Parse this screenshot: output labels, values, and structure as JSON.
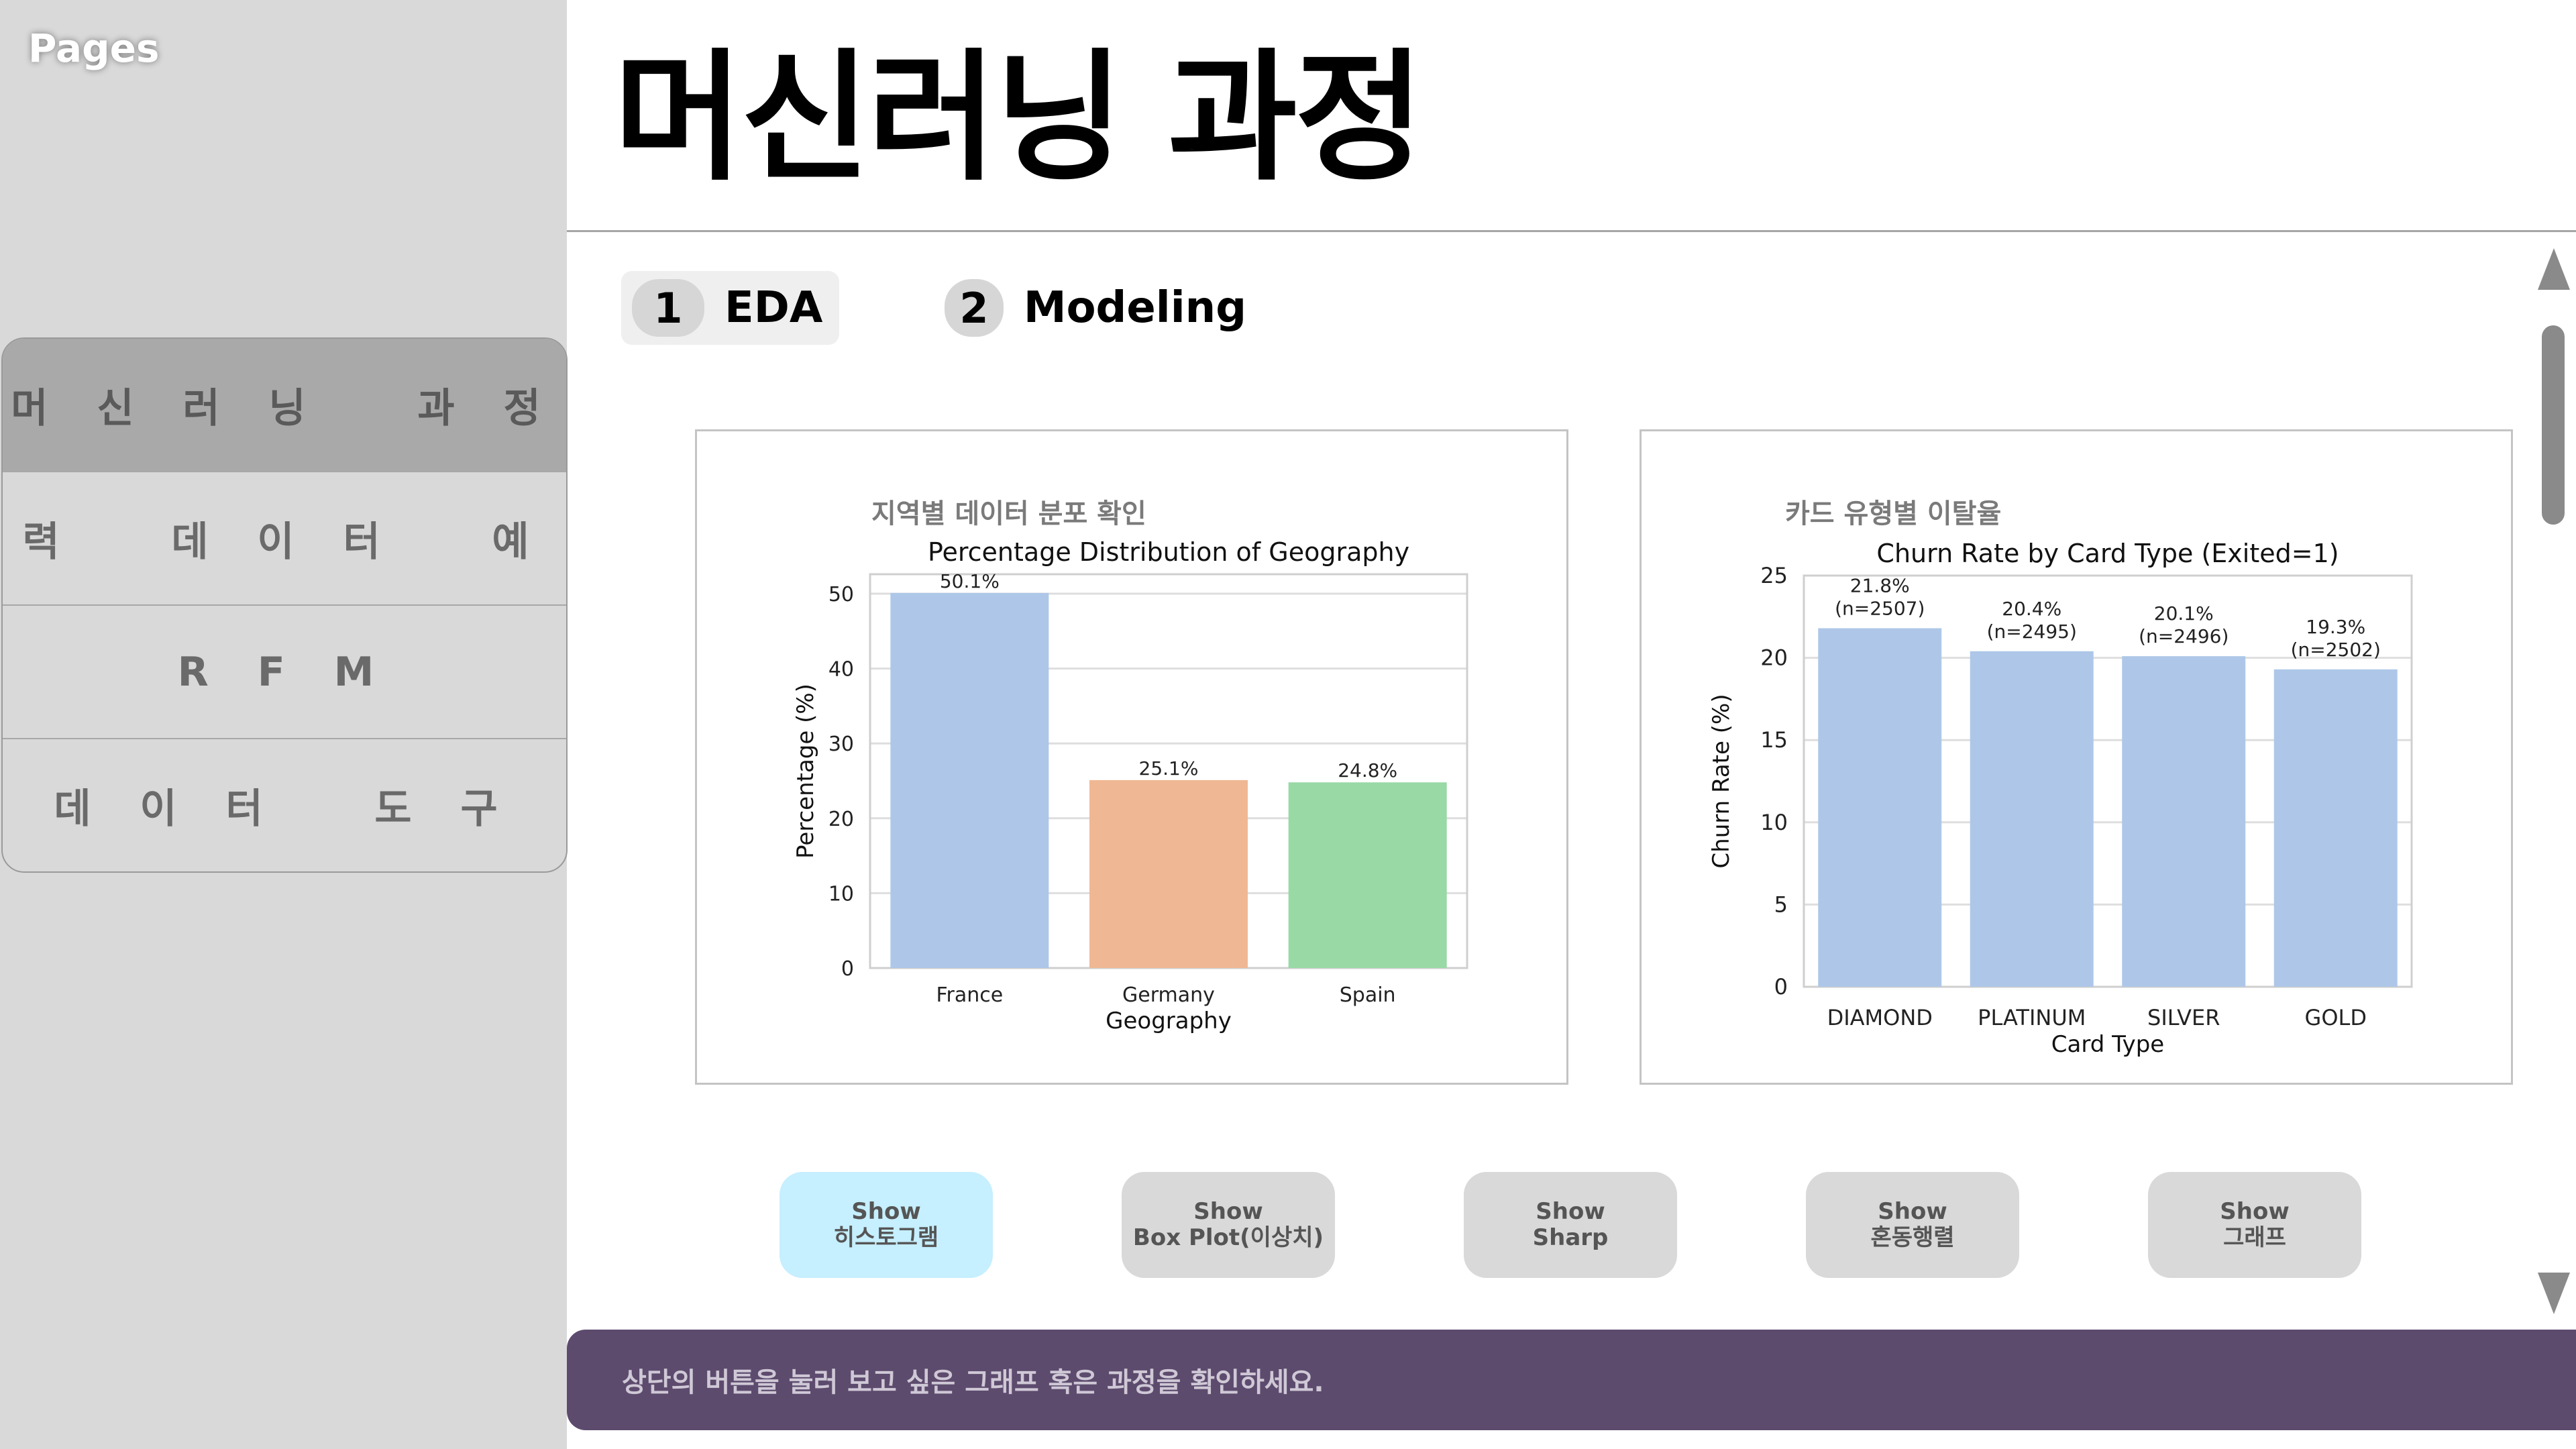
{
  "sidebar": {
    "pages_label": "Pages",
    "items": [
      {
        "label": "머 신 러 닝   과 정",
        "active": true
      },
      {
        "label": "입 력   데 이 터   예 측",
        "active": false
      },
      {
        "label": "R F M",
        "active": false
      },
      {
        "label": "데 이 터   도 구",
        "active": false
      }
    ]
  },
  "header": {
    "title": "머신러닝 과정"
  },
  "tabs": [
    {
      "number": "1",
      "label": "EDA"
    },
    {
      "number": "2",
      "label": "Modeling"
    }
  ],
  "panels": [
    {
      "heading": "지역별 데이터 분포 확인"
    },
    {
      "heading": "카드 유형별 이탈율"
    }
  ],
  "chart_data": [
    {
      "type": "bar",
      "title": "Percentage Distribution of Geography",
      "xlabel": "Geography",
      "ylabel": "Percentage (%)",
      "categories": [
        "France",
        "Germany",
        "Spain"
      ],
      "values": [
        50.1,
        25.1,
        24.8
      ],
      "data_labels": [
        "50.1%",
        "25.1%",
        "24.8%"
      ],
      "colors": [
        "#aec7e8",
        "#f0b794",
        "#98d9a6"
      ],
      "ylim": [
        0,
        52.6
      ],
      "yticks": [
        0,
        10,
        20,
        30,
        40,
        50
      ],
      "grid": true
    },
    {
      "type": "bar",
      "title": "Churn Rate by Card Type (Exited=1)",
      "xlabel": "Card Type",
      "ylabel": "Churn Rate (%)",
      "categories": [
        "DIAMOND",
        "PLATINUM",
        "SILVER",
        "GOLD"
      ],
      "values": [
        21.8,
        20.4,
        20.1,
        19.3
      ],
      "data_labels": [
        [
          "21.8%",
          "(n=2507)"
        ],
        [
          "20.4%",
          "(n=2495)"
        ],
        [
          "20.1%",
          "(n=2496)"
        ],
        [
          "19.3%",
          "(n=2502)"
        ]
      ],
      "colors": [
        "#aec7e8",
        "#aec7e8",
        "#aec7e8",
        "#aec7e8"
      ],
      "ylim": [
        0,
        25
      ],
      "yticks": [
        0,
        5,
        10,
        15,
        20,
        25
      ],
      "grid": true
    }
  ],
  "buttons": [
    {
      "line1": "Show",
      "line2": "히스토그램",
      "active": true
    },
    {
      "line1": "Show",
      "line2": "Box Plot(이상치)",
      "active": false
    },
    {
      "line1": "Show",
      "line2": "Sharp",
      "active": false
    },
    {
      "line1": "Show",
      "line2": "혼동행렬",
      "active": false
    },
    {
      "line1": "Show",
      "line2": "그래프",
      "active": false
    }
  ],
  "footer": {
    "message": "상단의 버튼을 눌러 보고 싶은 그래프 혹은 과정을 확인하세요."
  },
  "colors": {
    "footer_bg": "#5d4b6e",
    "active_button": "#c6efff",
    "sidebar_bg": "#d9d9d9"
  }
}
